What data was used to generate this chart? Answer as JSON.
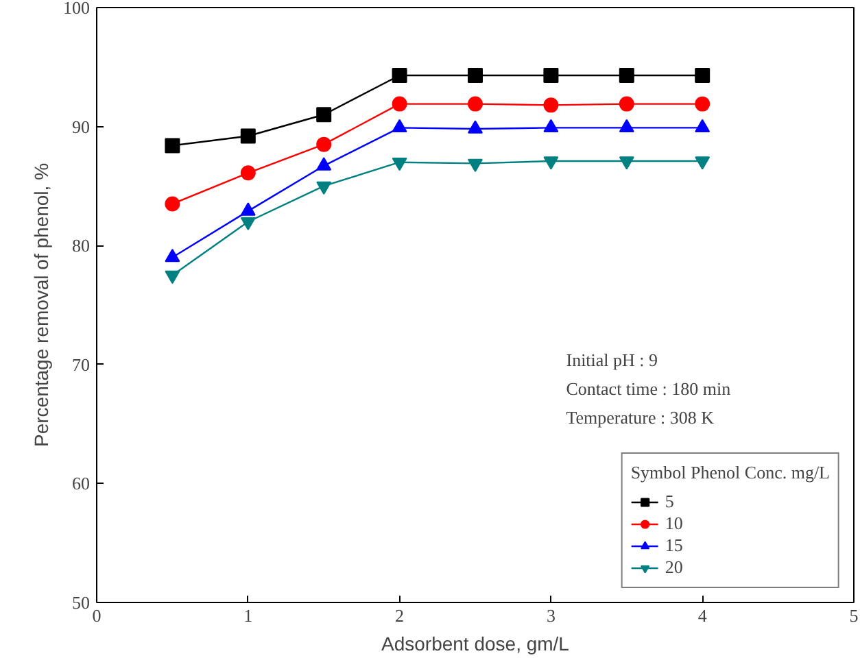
{
  "chart_data": {
    "type": "line",
    "xlabel": "Adsorbent dose, gm/L",
    "ylabel": "Percentage removal of phenol, %",
    "x": [
      0.5,
      1,
      1.5,
      2,
      2.5,
      3,
      3.5,
      4
    ],
    "series": [
      {
        "name": "5",
        "color": "#000000",
        "marker": "square",
        "values": [
          88.4,
          89.2,
          91.0,
          94.3,
          94.3,
          94.3,
          94.3,
          94.3
        ]
      },
      {
        "name": "10",
        "color": "#ff0000",
        "marker": "circle",
        "values": [
          83.5,
          86.1,
          88.5,
          91.9,
          91.9,
          91.8,
          91.9,
          91.9
        ]
      },
      {
        "name": "15",
        "color": "#0000ff",
        "marker": "triangle",
        "values": [
          79.0,
          82.9,
          86.7,
          89.9,
          89.8,
          89.9,
          89.9,
          89.9
        ]
      },
      {
        "name": "20",
        "color": "#008080",
        "marker": "triangle",
        "values": [
          77.5,
          82.0,
          85.0,
          87.0,
          86.9,
          87.1,
          87.1,
          87.1
        ]
      }
    ],
    "xlim": [
      0,
      5
    ],
    "xticks": [
      0,
      1,
      2,
      3,
      4,
      5
    ],
    "ylim": [
      50,
      100
    ],
    "yticks": [
      50,
      60,
      70,
      80,
      90,
      100
    ],
    "grid": false,
    "legend": "bottom right",
    "legend_title": "Symbol Phenol Conc. mg/L",
    "annotations": [
      "Initial pH : 9",
      "Contact time : 180 min",
      "Temperature : 308 K"
    ]
  }
}
